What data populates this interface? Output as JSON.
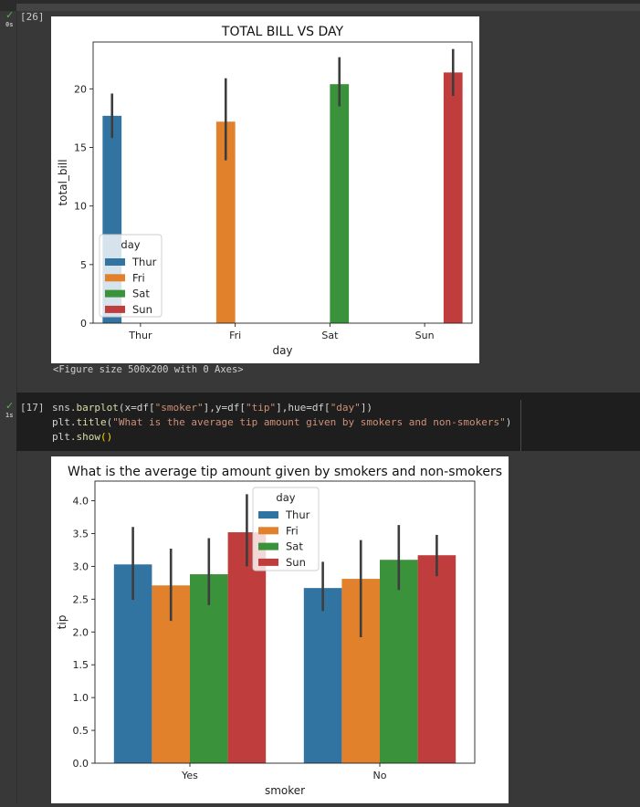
{
  "cells": [
    {
      "exec_count": "[26]",
      "duration": "0s"
    },
    {
      "exec_count": "[17]",
      "duration": "1s"
    }
  ],
  "figure_caption": "<Figure size 500x200 with 0 Axes>",
  "code_lines": [
    [
      [
        "sns",
        "#d4d4d4"
      ],
      [
        ".",
        "#d4d4d4"
      ],
      [
        "barplot",
        "#dcdcaa"
      ],
      [
        "(x=df[",
        "#d4d4d4"
      ],
      [
        "\"smoker\"",
        "#ce9178"
      ],
      [
        "],y=df[",
        "#d4d4d4"
      ],
      [
        "\"tip\"",
        "#ce9178"
      ],
      [
        "],hue=df[",
        "#d4d4d4"
      ],
      [
        "\"day\"",
        "#ce9178"
      ],
      [
        "])",
        "#d4d4d4"
      ]
    ],
    [
      [
        "plt",
        "#d4d4d4"
      ],
      [
        ".",
        "#d4d4d4"
      ],
      [
        "title",
        "#dcdcaa"
      ],
      [
        "(",
        "#d4d4d4"
      ],
      [
        "\"What is the average tip amount given by smokers and non-smokers\"",
        "#ce9178"
      ],
      [
        ")",
        "#d4d4d4"
      ]
    ],
    [
      [
        "plt",
        "#d4d4d4"
      ],
      [
        ".",
        "#d4d4d4"
      ],
      [
        "show",
        "#dcdcaa"
      ],
      [
        "()",
        "#ffd700"
      ]
    ]
  ],
  "chart_data": [
    {
      "type": "bar",
      "title": "TOTAL BILL VS DAY",
      "xlabel": "day",
      "ylabel": "total_bill",
      "ylim": [
        0,
        24
      ],
      "yticks": [
        0,
        5,
        10,
        15,
        20
      ],
      "categories": [
        "Thur",
        "Fri",
        "Sat",
        "Sun"
      ],
      "legend_title": "day",
      "legend_placement": "lower-left",
      "series": [
        {
          "name": "Thur",
          "color": "#3274a1",
          "values": [
            17.7,
            null,
            null,
            null
          ],
          "ci_low": [
            15.8,
            null,
            null,
            null
          ],
          "ci_high": [
            19.6,
            null,
            null,
            null
          ]
        },
        {
          "name": "Fri",
          "color": "#e1812c",
          "values": [
            null,
            17.2,
            null,
            null
          ],
          "ci_low": [
            null,
            13.9,
            null,
            null
          ],
          "ci_high": [
            null,
            20.9,
            null,
            null
          ]
        },
        {
          "name": "Sat",
          "color": "#3a923a",
          "values": [
            null,
            null,
            20.4,
            null
          ],
          "ci_low": [
            null,
            null,
            18.5,
            null
          ],
          "ci_high": [
            null,
            null,
            22.7,
            null
          ]
        },
        {
          "name": "Sun",
          "color": "#c03d3e",
          "values": [
            null,
            null,
            null,
            21.4
          ],
          "ci_low": [
            null,
            null,
            null,
            19.4
          ],
          "ci_high": [
            null,
            null,
            null,
            23.4
          ]
        }
      ]
    },
    {
      "type": "bar",
      "title": "What is the average tip amount given by smokers and non-smokers",
      "xlabel": "smoker",
      "ylabel": "tip",
      "ylim": [
        0,
        4.3
      ],
      "yticks": [
        "0.0",
        "0.5",
        "1.0",
        "1.5",
        "2.0",
        "2.5",
        "3.0",
        "3.5",
        "4.0"
      ],
      "categories": [
        "Yes",
        "No"
      ],
      "legend_title": "day",
      "legend_placement": "upper-center",
      "series": [
        {
          "name": "Thur",
          "color": "#3274a1",
          "values": [
            3.03,
            2.67
          ],
          "ci_low": [
            2.49,
            2.32
          ],
          "ci_high": [
            3.6,
            3.07
          ]
        },
        {
          "name": "Fri",
          "color": "#e1812c",
          "values": [
            2.71,
            2.81
          ],
          "ci_low": [
            2.17,
            1.92
          ],
          "ci_high": [
            3.27,
            3.4
          ]
        },
        {
          "name": "Sat",
          "color": "#3a923a",
          "values": [
            2.88,
            3.1
          ],
          "ci_low": [
            2.41,
            2.64
          ],
          "ci_high": [
            3.43,
            3.63
          ]
        },
        {
          "name": "Sun",
          "color": "#c03d3e",
          "values": [
            3.52,
            3.17
          ],
          "ci_low": [
            3.0,
            2.85
          ],
          "ci_high": [
            4.1,
            3.48
          ]
        }
      ]
    }
  ]
}
